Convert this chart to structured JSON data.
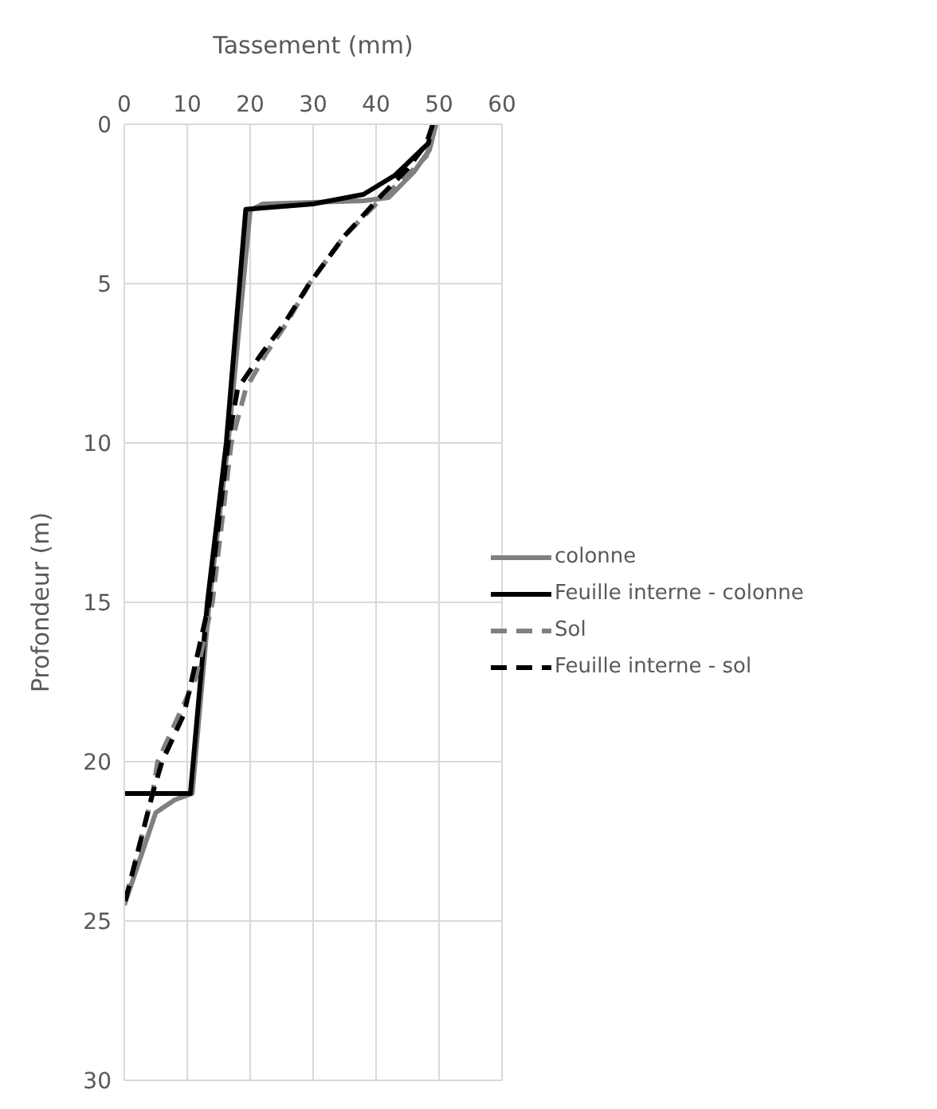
{
  "chart_data": {
    "type": "line",
    "xlabel": "Tassement (mm)",
    "ylabel": "Profondeur (m)",
    "xlim": [
      0,
      60
    ],
    "xticks": [
      0,
      10,
      20,
      30,
      40,
      50,
      60
    ],
    "ylim": [
      30,
      0
    ],
    "yticks": [
      0,
      5,
      10,
      15,
      20,
      25,
      30
    ],
    "grid": true,
    "legend": "right",
    "marker": "none",
    "series": [
      {
        "name": "colonne",
        "color": "#808080",
        "line_style": "solid",
        "x": [
          49.5,
          48.5,
          46,
          44.5,
          42,
          38,
          30,
          22,
          20,
          16.5,
          13.5,
          10.8,
          8,
          5,
          0
        ],
        "values": [
          0,
          0.8,
          1.5,
          1.8,
          2.3,
          2.4,
          2.45,
          2.5,
          2.7,
          10,
          15,
          21,
          21.2,
          21.6,
          24.5
        ]
      },
      {
        "name": "Feuille interne - colonne",
        "color": "#000000",
        "line_style": "solid",
        "x": [
          49,
          48.3,
          43,
          38,
          30,
          19.3,
          16.2,
          13.2,
          10.5,
          0
        ],
        "values": [
          0,
          0.6,
          1.6,
          2.2,
          2.5,
          2.67,
          10,
          15,
          21,
          21
        ]
      },
      {
        "name": "Sol",
        "color": "#808080",
        "line_style": "dashed",
        "x": [
          49.5,
          48,
          45,
          41,
          35,
          29.4,
          25.6,
          22.5,
          19.3,
          17,
          14,
          11.3,
          5.3,
          4.5,
          0
        ],
        "values": [
          0,
          1,
          1.6,
          2.3,
          3.5,
          5,
          6.3,
          7.2,
          8.3,
          10,
          15,
          17.4,
          20,
          21,
          24.5
        ]
      },
      {
        "name": "Feuille interne - sol",
        "color": "#000000",
        "line_style": "dashed",
        "x": [
          49,
          48,
          45,
          41,
          35,
          29.4,
          25.6,
          21.8,
          18,
          16.5,
          13.5,
          9.5,
          6,
          4.5,
          0
        ],
        "values": [
          0,
          0.6,
          1.4,
          2.2,
          3.5,
          5,
          6.2,
          7.2,
          8.3,
          10,
          15,
          18.5,
          20,
          21,
          24.5
        ]
      }
    ]
  }
}
